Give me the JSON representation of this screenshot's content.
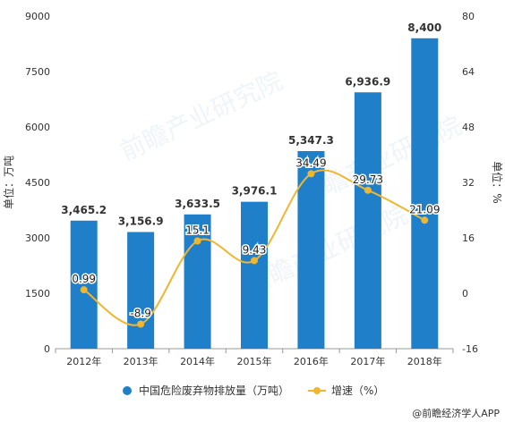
{
  "chart_data": {
    "type": "bar",
    "categories": [
      "2012年",
      "2013年",
      "2014年",
      "2015年",
      "2016年",
      "2017年",
      "2018年"
    ],
    "series": [
      {
        "name": "中国危险废弃物排放量（万吨）",
        "type": "bar",
        "axis": "left",
        "values": [
          3465.2,
          3156.9,
          3633.5,
          3976.1,
          5347.3,
          6936.9,
          8400
        ],
        "labels": [
          "3,465.2",
          "3,156.9",
          "3,633.5",
          "3,976.1",
          "5,347.3",
          "6,936.9",
          "8,400"
        ]
      },
      {
        "name": "增速（%）",
        "type": "line",
        "axis": "right",
        "values": [
          0.99,
          -8.9,
          15.1,
          9.43,
          34.49,
          29.73,
          21.09
        ],
        "labels": [
          "0.99",
          "-8.9",
          "15.1",
          "9.43",
          "34.49",
          "29.73",
          "21.09"
        ]
      }
    ],
    "ylabel": "单位：万吨",
    "ylabel_right": "单位：%",
    "ylim": [
      0,
      9000
    ],
    "ylim_right": [
      -16,
      80
    ],
    "yticks": [
      "0",
      "1500",
      "3000",
      "4500",
      "6000",
      "7500",
      "9000"
    ],
    "yticks_right": [
      "-16",
      "0",
      "16",
      "32",
      "48",
      "64",
      "80"
    ],
    "legend_position": "bottom",
    "grid": false,
    "colors": {
      "bar": "#1f7fc8",
      "line": "#f0b632",
      "axis": "#999999",
      "text": "#333333"
    }
  },
  "watermark": "前瞻产业研究院",
  "source": "@前瞻经济学人APP"
}
